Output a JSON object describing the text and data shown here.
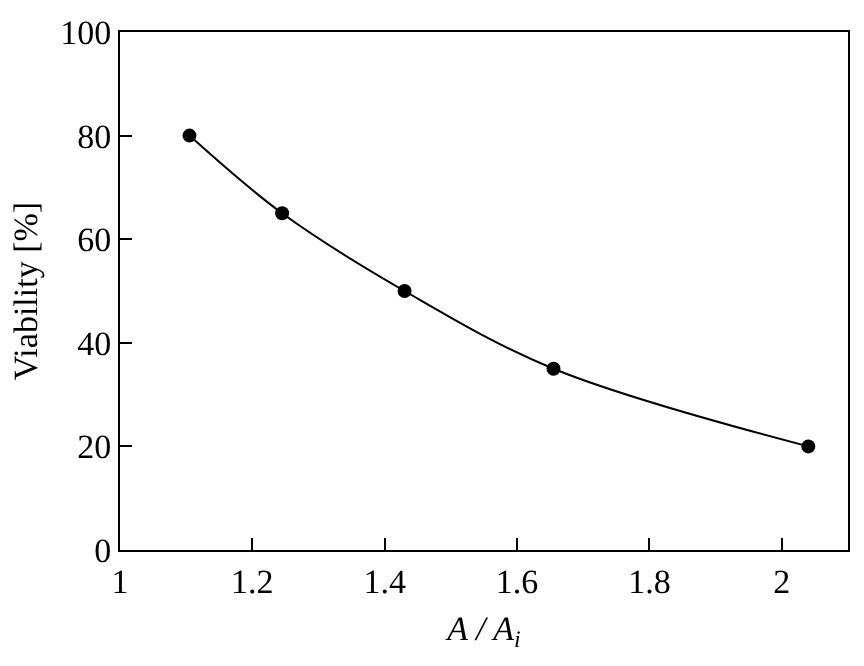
{
  "chart_data": {
    "type": "line",
    "xlabel": "A / A$_{i}$",
    "ylabel": "Viability [%]",
    "x": [
      1.105,
      1.245,
      1.43,
      1.655,
      2.04
    ],
    "series": [
      {
        "color": "#000000",
        "values": [
          80,
          65,
          50,
          35,
          20
        ]
      }
    ],
    "xlim": [
      1,
      2.1
    ],
    "xticks": [
      1,
      1.2,
      1.4,
      1.6,
      1.8,
      2
    ],
    "ylim": [
      0,
      100
    ],
    "yticks": [
      0,
      20,
      40,
      60,
      80,
      100
    ],
    "marker": "circle",
    "line_style": "solid",
    "grid": false,
    "legend": false
  }
}
